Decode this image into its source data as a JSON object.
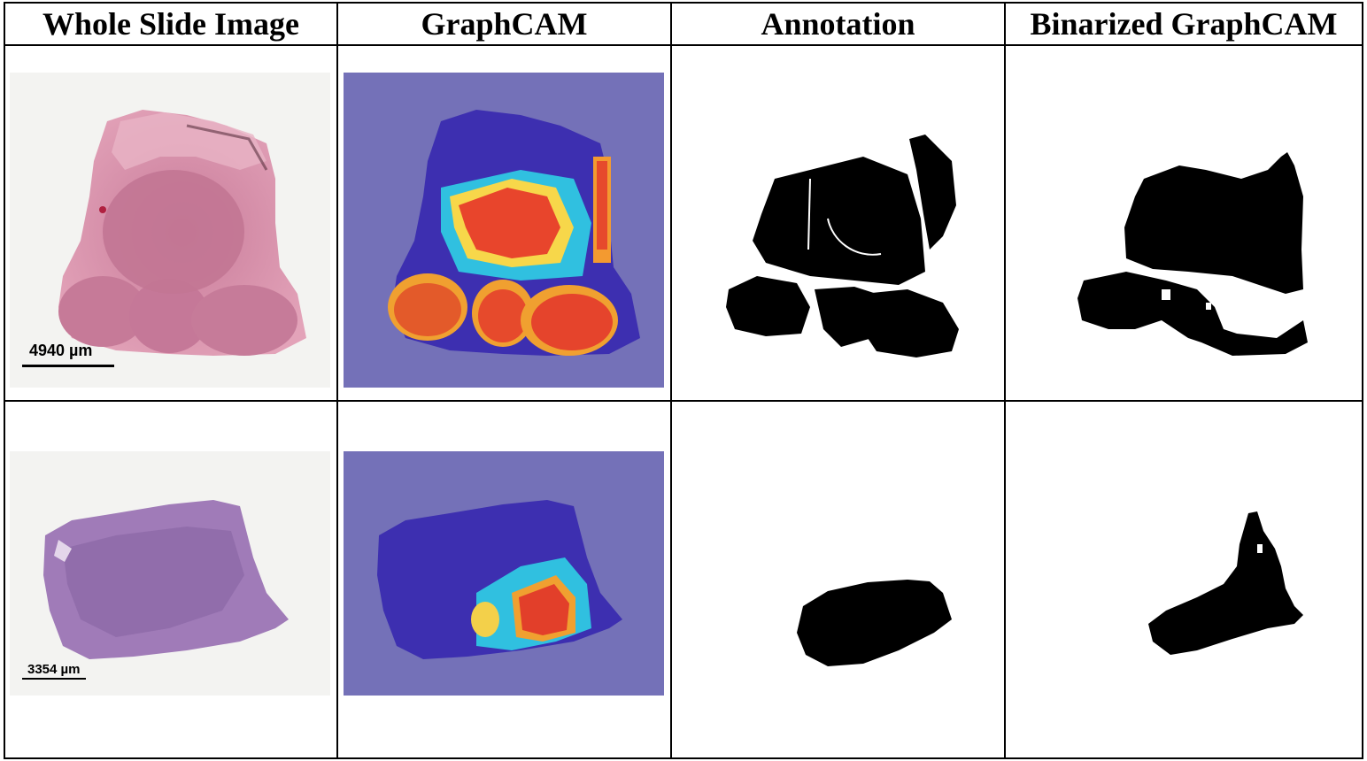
{
  "columns": [
    "Whole Slide Image",
    "GraphCAM",
    "Annotation",
    "Binarized GraphCAM"
  ],
  "rows": [
    {
      "scale_label": "4940 µm"
    },
    {
      "scale_label": "3354 µm"
    }
  ],
  "colors": {
    "tissue_pink": "#d98aa6",
    "tissue_purple": "#a07bb8",
    "cam_background": "#7471b8",
    "cam_hot": "#e8452c",
    "mask": "#000000"
  }
}
